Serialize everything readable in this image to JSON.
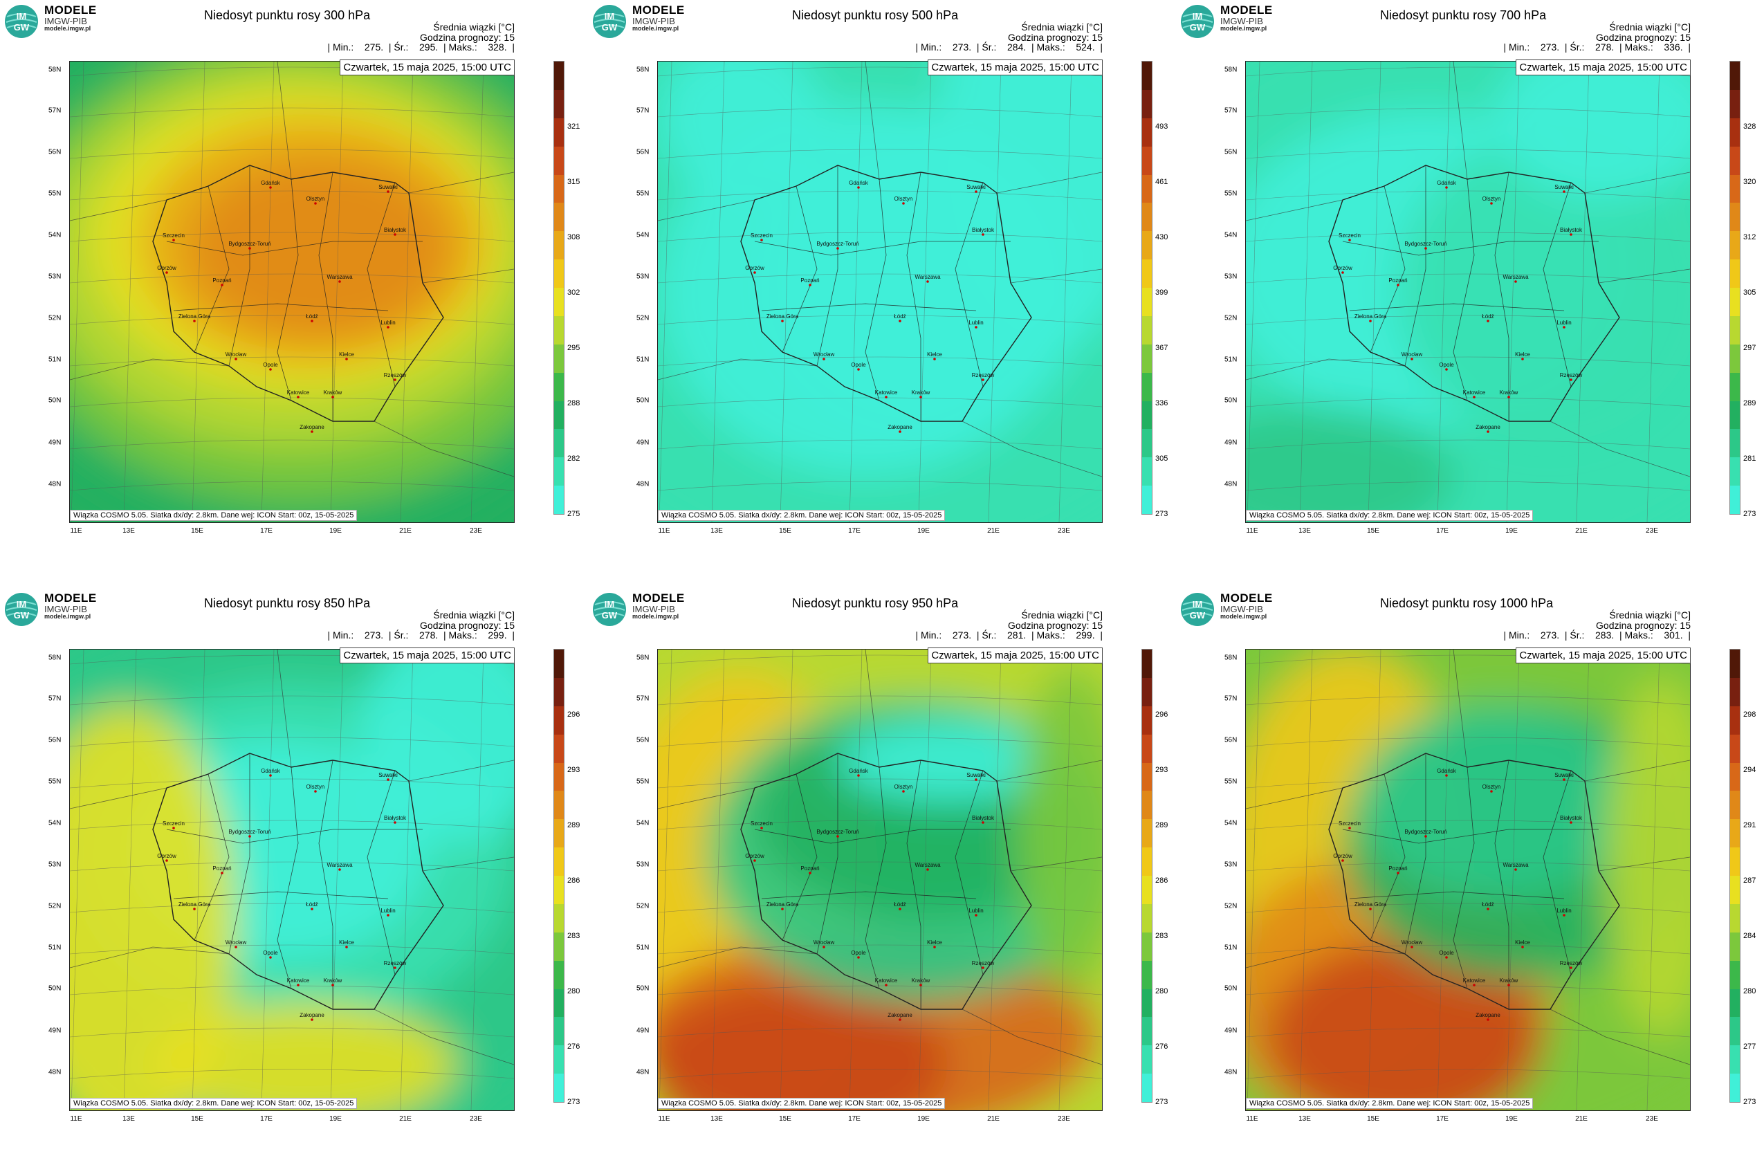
{
  "brand": {
    "name": "MODELE",
    "org": "IMGW-PIB",
    "url": "modele.imgw.pl",
    "logo_text_top": "IM",
    "logo_text_bottom": "GW"
  },
  "common": {
    "mean_label": "Średnia wiązki [°C]",
    "forecast_hour": "Godzina prognozy: 15",
    "date": "Czwartek, 15 maja 2025, 15:00 UTC",
    "footer": "Wiązka COSMO 5.05. Siatka dx/dy: 2.8km. Dane wej: ICON Start: 00z, 15-05-2025",
    "lat_labels": [
      "58N",
      "57N",
      "56N",
      "55N",
      "54N",
      "53N",
      "52N",
      "51N",
      "50N",
      "49N",
      "48N"
    ],
    "lon_labels": [
      "11E",
      "13E",
      "15E",
      "17E",
      "19E",
      "21E",
      "23E"
    ],
    "cities": [
      "Gdańsk",
      "Olsztyn",
      "Suwałki",
      "Szczecin",
      "Bydgoszcz-Toruń",
      "Białystok",
      "Gorzów",
      "Poznań",
      "Warszawa",
      "Zielona Góra",
      "Łódź",
      "Lublin",
      "Wrocław",
      "Opole",
      "Kielce",
      "Rzeszów",
      "Katowice",
      "Kraków",
      "Zakopane"
    ]
  },
  "panels": [
    {
      "title": "Niedosyt punktu rosy 300 hPa",
      "stats": "| Min.:    275.  | Śr.:    295.  | Maks.:    328.  |",
      "colorbar_ticks": [
        "321",
        "315",
        "308",
        "302",
        "295",
        "288",
        "282",
        "275"
      ]
    },
    {
      "title": "Niedosyt punktu rosy 500 hPa",
      "stats": "| Min.:    273.  | Śr.:    284.  | Maks.:    524.  |",
      "colorbar_ticks": [
        "493",
        "461",
        "430",
        "399",
        "367",
        "336",
        "305",
        "273"
      ]
    },
    {
      "title": "Niedosyt punktu rosy 700 hPa",
      "stats": "| Min.:    273.  | Śr.:    278.  | Maks.:    336.  |",
      "colorbar_ticks": [
        "328",
        "320",
        "312",
        "305",
        "297",
        "289",
        "281",
        "273"
      ]
    },
    {
      "title": "Niedosyt punktu rosy 850 hPa",
      "stats": "| Min.:    273.  | Śr.:    278.  | Maks.:    299.  |",
      "colorbar_ticks": [
        "296",
        "293",
        "289",
        "286",
        "283",
        "280",
        "276",
        "273"
      ]
    },
    {
      "title": "Niedosyt punktu rosy 950 hPa",
      "stats": "| Min.:    273.  | Śr.:    281.  | Maks.:    299.  |",
      "colorbar_ticks": [
        "296",
        "293",
        "289",
        "286",
        "283",
        "280",
        "276",
        "273"
      ]
    },
    {
      "title": "Niedosyt punktu rosy 1000 hPa",
      "stats": "| Min.:    273.  | Śr.:    283.  | Maks.:    301.  |",
      "colorbar_ticks": [
        "298",
        "294",
        "291",
        "287",
        "284",
        "280",
        "277",
        "273"
      ]
    }
  ],
  "colorbar_colors": [
    "#40f0d8",
    "#38e0b0",
    "#2cc888",
    "#22b060",
    "#3cb84a",
    "#7cc83c",
    "#b8d830",
    "#e8e020",
    "#f0c818",
    "#e8a818",
    "#e08818",
    "#d86818",
    "#c84818",
    "#a83010",
    "#782010",
    "#501808"
  ]
}
